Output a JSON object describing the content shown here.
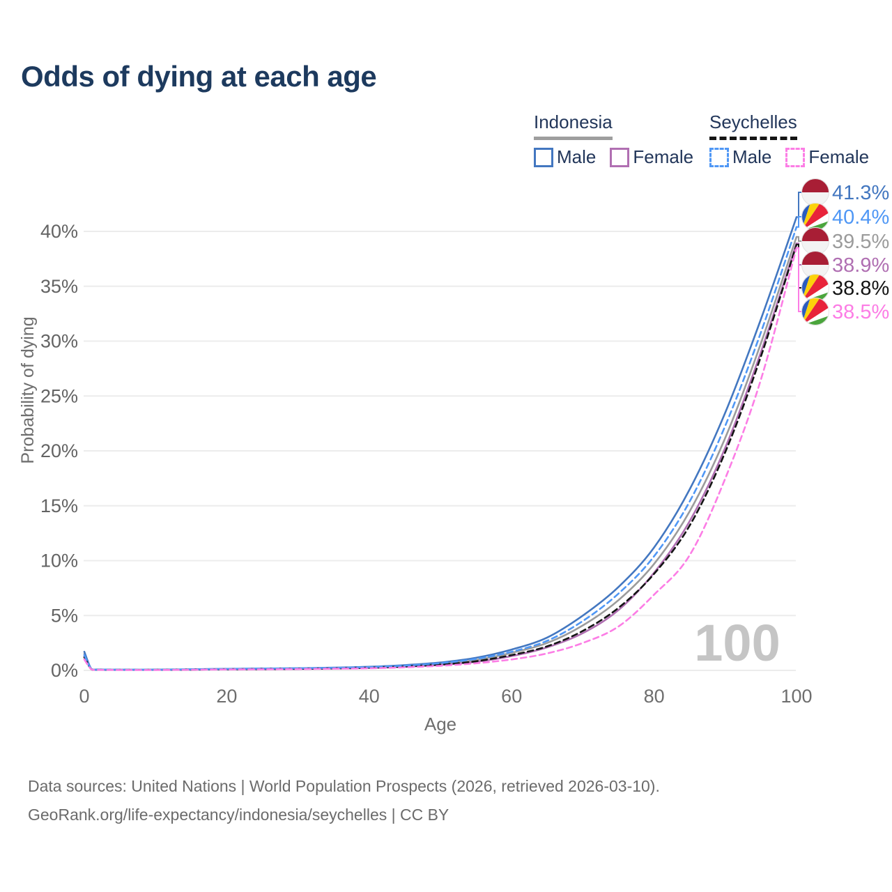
{
  "title": "Odds of dying at each age",
  "legend": {
    "groups": [
      {
        "name": "Indonesia",
        "underline_style": "solid",
        "underline_color": "#9e9e9e",
        "items": [
          {
            "label": "Male",
            "color": "#4377c0",
            "dashed": false
          },
          {
            "label": "Female",
            "color": "#b06fb2",
            "dashed": false
          }
        ]
      },
      {
        "name": "Seychelles",
        "underline_style": "dashed",
        "underline_color": "#141414",
        "items": [
          {
            "label": "Male",
            "color": "#4f97f5",
            "dashed": true
          },
          {
            "label": "Female",
            "color": "#fc7de5",
            "dashed": true
          }
        ]
      }
    ]
  },
  "footer": {
    "line1": "Data sources: United Nations | World Population Prospects (2026, retrieved 2026-03-10).",
    "line2": "GeoRank.org/life-expectancy/indonesia/seychelles | CC BY"
  },
  "chart_data": {
    "type": "line",
    "title": "Odds of dying at each age",
    "xlabel": "Age",
    "ylabel": "Probability of dying",
    "xlim": [
      0,
      100
    ],
    "ylim_percent": [
      0,
      43
    ],
    "x_ticks": [
      0,
      20,
      40,
      60,
      80,
      100
    ],
    "y_ticks_percent": [
      0,
      5,
      10,
      15,
      20,
      25,
      30,
      35,
      40
    ],
    "grid": true,
    "legend_position": "top-right",
    "watermark": "100",
    "x": [
      0,
      1,
      2,
      5,
      10,
      15,
      20,
      25,
      30,
      35,
      40,
      45,
      50,
      55,
      60,
      65,
      70,
      75,
      80,
      85,
      90,
      95,
      100
    ],
    "series": [
      {
        "name": "Indonesia Male",
        "flag": "indonesia",
        "color": "#4377c0",
        "dashed": false,
        "end_label": "41.3%",
        "values_percent": [
          1.7,
          0.12,
          0.08,
          0.06,
          0.07,
          0.1,
          0.14,
          0.17,
          0.2,
          0.25,
          0.33,
          0.48,
          0.72,
          1.15,
          1.9,
          3.0,
          5.0,
          7.6,
          11.2,
          16.5,
          23.5,
          32.0,
          41.3
        ]
      },
      {
        "name": "Seychelles Male",
        "flag": "seychelles",
        "color": "#4f97f5",
        "dashed": true,
        "end_label": "40.4%",
        "values_percent": [
          1.4,
          0.11,
          0.07,
          0.06,
          0.06,
          0.09,
          0.13,
          0.16,
          0.19,
          0.23,
          0.3,
          0.44,
          0.66,
          1.05,
          1.7,
          2.7,
          4.5,
          7.0,
          10.4,
          15.4,
          22.3,
          30.8,
          40.4
        ]
      },
      {
        "name": "Indonesia",
        "flag": "indonesia",
        "color": "#9b9b9b",
        "dashed": false,
        "end_label": "39.5%",
        "values_percent": [
          1.5,
          0.11,
          0.07,
          0.05,
          0.06,
          0.08,
          0.11,
          0.14,
          0.16,
          0.2,
          0.27,
          0.4,
          0.6,
          0.95,
          1.6,
          2.5,
          4.1,
          6.4,
          9.7,
          14.5,
          21.2,
          29.8,
          39.5
        ]
      },
      {
        "name": "Indonesia Female",
        "flag": "indonesia",
        "color": "#b06fb2",
        "dashed": false,
        "end_label": "38.9%",
        "values_percent": [
          1.3,
          0.1,
          0.06,
          0.05,
          0.05,
          0.07,
          0.09,
          0.11,
          0.13,
          0.17,
          0.22,
          0.33,
          0.5,
          0.78,
          1.3,
          2.1,
          3.4,
          5.5,
          8.9,
          13.6,
          20.3,
          29.0,
          38.9
        ]
      },
      {
        "name": "Seychelles",
        "flag": "seychelles",
        "color": "#141414",
        "dashed": true,
        "end_label": "38.8%",
        "values_percent": [
          1.2,
          0.1,
          0.06,
          0.05,
          0.05,
          0.07,
          0.1,
          0.12,
          0.14,
          0.18,
          0.24,
          0.35,
          0.53,
          0.83,
          1.4,
          2.2,
          3.6,
          5.7,
          8.8,
          13.2,
          19.9,
          28.6,
          38.8
        ]
      },
      {
        "name": "Seychelles Female",
        "flag": "seychelles",
        "color": "#fc7de5",
        "dashed": true,
        "end_label": "38.5%",
        "values_percent": [
          1.0,
          0.09,
          0.05,
          0.04,
          0.04,
          0.06,
          0.08,
          0.1,
          0.12,
          0.15,
          0.19,
          0.28,
          0.42,
          0.65,
          1.0,
          1.55,
          2.5,
          4.0,
          6.9,
          10.5,
          17.5,
          26.5,
          38.5
        ]
      }
    ],
    "flag_colors": {
      "indonesia": {
        "top": "#a81e35",
        "bottom": "#f3f3f3"
      },
      "seychelles": {
        "blue": "#2a5cbf",
        "yellow": "#fcd20a",
        "red": "#e8233a",
        "white": "#ffffff",
        "green": "#4aa53c"
      }
    }
  }
}
